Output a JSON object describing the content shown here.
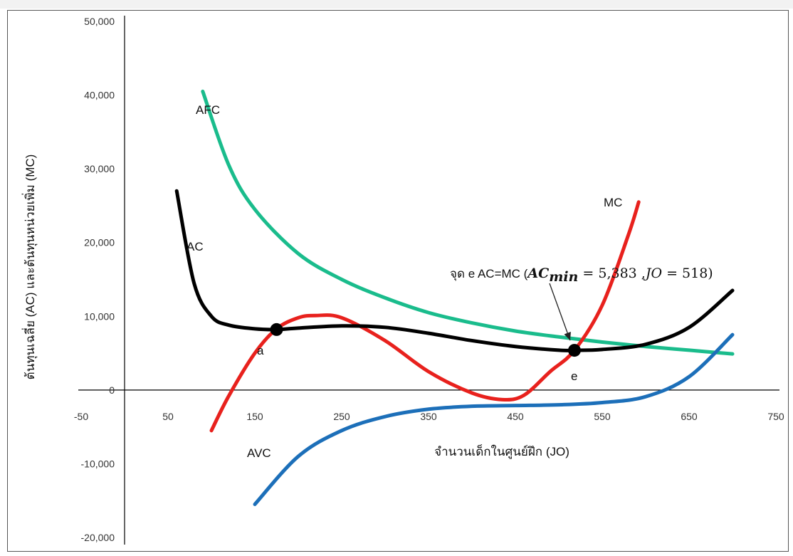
{
  "chart_data": {
    "type": "line",
    "xlabel": "จำนวนเด็กในศูนย์ฝึก (JO)",
    "ylabel": "ต้นทุนเฉลี่ย (AC) และต้นทุนหน่วยเพิ่ม (MC)",
    "xlim": [
      -50,
      750
    ],
    "ylim": [
      -20000,
      50000
    ],
    "x_ticks": [
      "-50",
      "50",
      "150",
      "250",
      "350",
      "450",
      "550",
      "650",
      "750"
    ],
    "y_ticks": [
      "50,000",
      "40,000",
      "30,000",
      "20,000",
      "10,000",
      "0",
      "-10,000",
      "-20,000"
    ],
    "grid": false,
    "legend": "none",
    "series": [
      {
        "name": "AFC",
        "color": "#1abc8c",
        "x": [
          90,
          120,
          150,
          200,
          250,
          300,
          350,
          400,
          450,
          500,
          550,
          600,
          650,
          700
        ],
        "y": [
          40500,
          30500,
          24500,
          18500,
          15000,
          12500,
          10500,
          9100,
          8000,
          7200,
          6500,
          5900,
          5400,
          4900
        ]
      },
      {
        "name": "AC",
        "color": "#000000",
        "x": [
          60,
          80,
          100,
          120,
          150,
          175,
          200,
          250,
          300,
          350,
          400,
          450,
          500,
          518,
          550,
          600,
          650,
          700
        ],
        "y": [
          27000,
          14500,
          10000,
          8800,
          8300,
          8200,
          8400,
          8700,
          8500,
          7700,
          6700,
          5900,
          5400,
          5383,
          5500,
          6200,
          8500,
          13500
        ]
      },
      {
        "name": "MC",
        "color": "#e8211d",
        "x": [
          100,
          120,
          150,
          175,
          200,
          220,
          250,
          300,
          350,
          400,
          435,
          460,
          490,
          518,
          550,
          580,
          592
        ],
        "y": [
          -5500,
          -800,
          5000,
          8300,
          9800,
          10100,
          9800,
          6700,
          2500,
          -400,
          -1300,
          -700,
          2500,
          5383,
          11500,
          21000,
          25500
        ]
      },
      {
        "name": "AVC",
        "color": "#1c6fb9",
        "x": [
          150,
          200,
          250,
          300,
          350,
          400,
          450,
          500,
          550,
          600,
          650,
          700
        ],
        "y": [
          -15500,
          -9000,
          -5500,
          -3600,
          -2600,
          -2200,
          -2100,
          -2000,
          -1700,
          -900,
          1800,
          7500
        ]
      }
    ],
    "points": [
      {
        "label": "a",
        "x": 175,
        "y": 8200
      },
      {
        "label": "e",
        "x": 518,
        "y": 5383
      }
    ],
    "annotation": {
      "text": "จุด e AC=MC (",
      "math_main": "AC",
      "math_sub": "min",
      "math_rest": " = 5,383 ,",
      "math_jo": "JO",
      "math_tail": " = 518)",
      "arrow_to": {
        "x": 518,
        "y": 5383
      }
    }
  }
}
